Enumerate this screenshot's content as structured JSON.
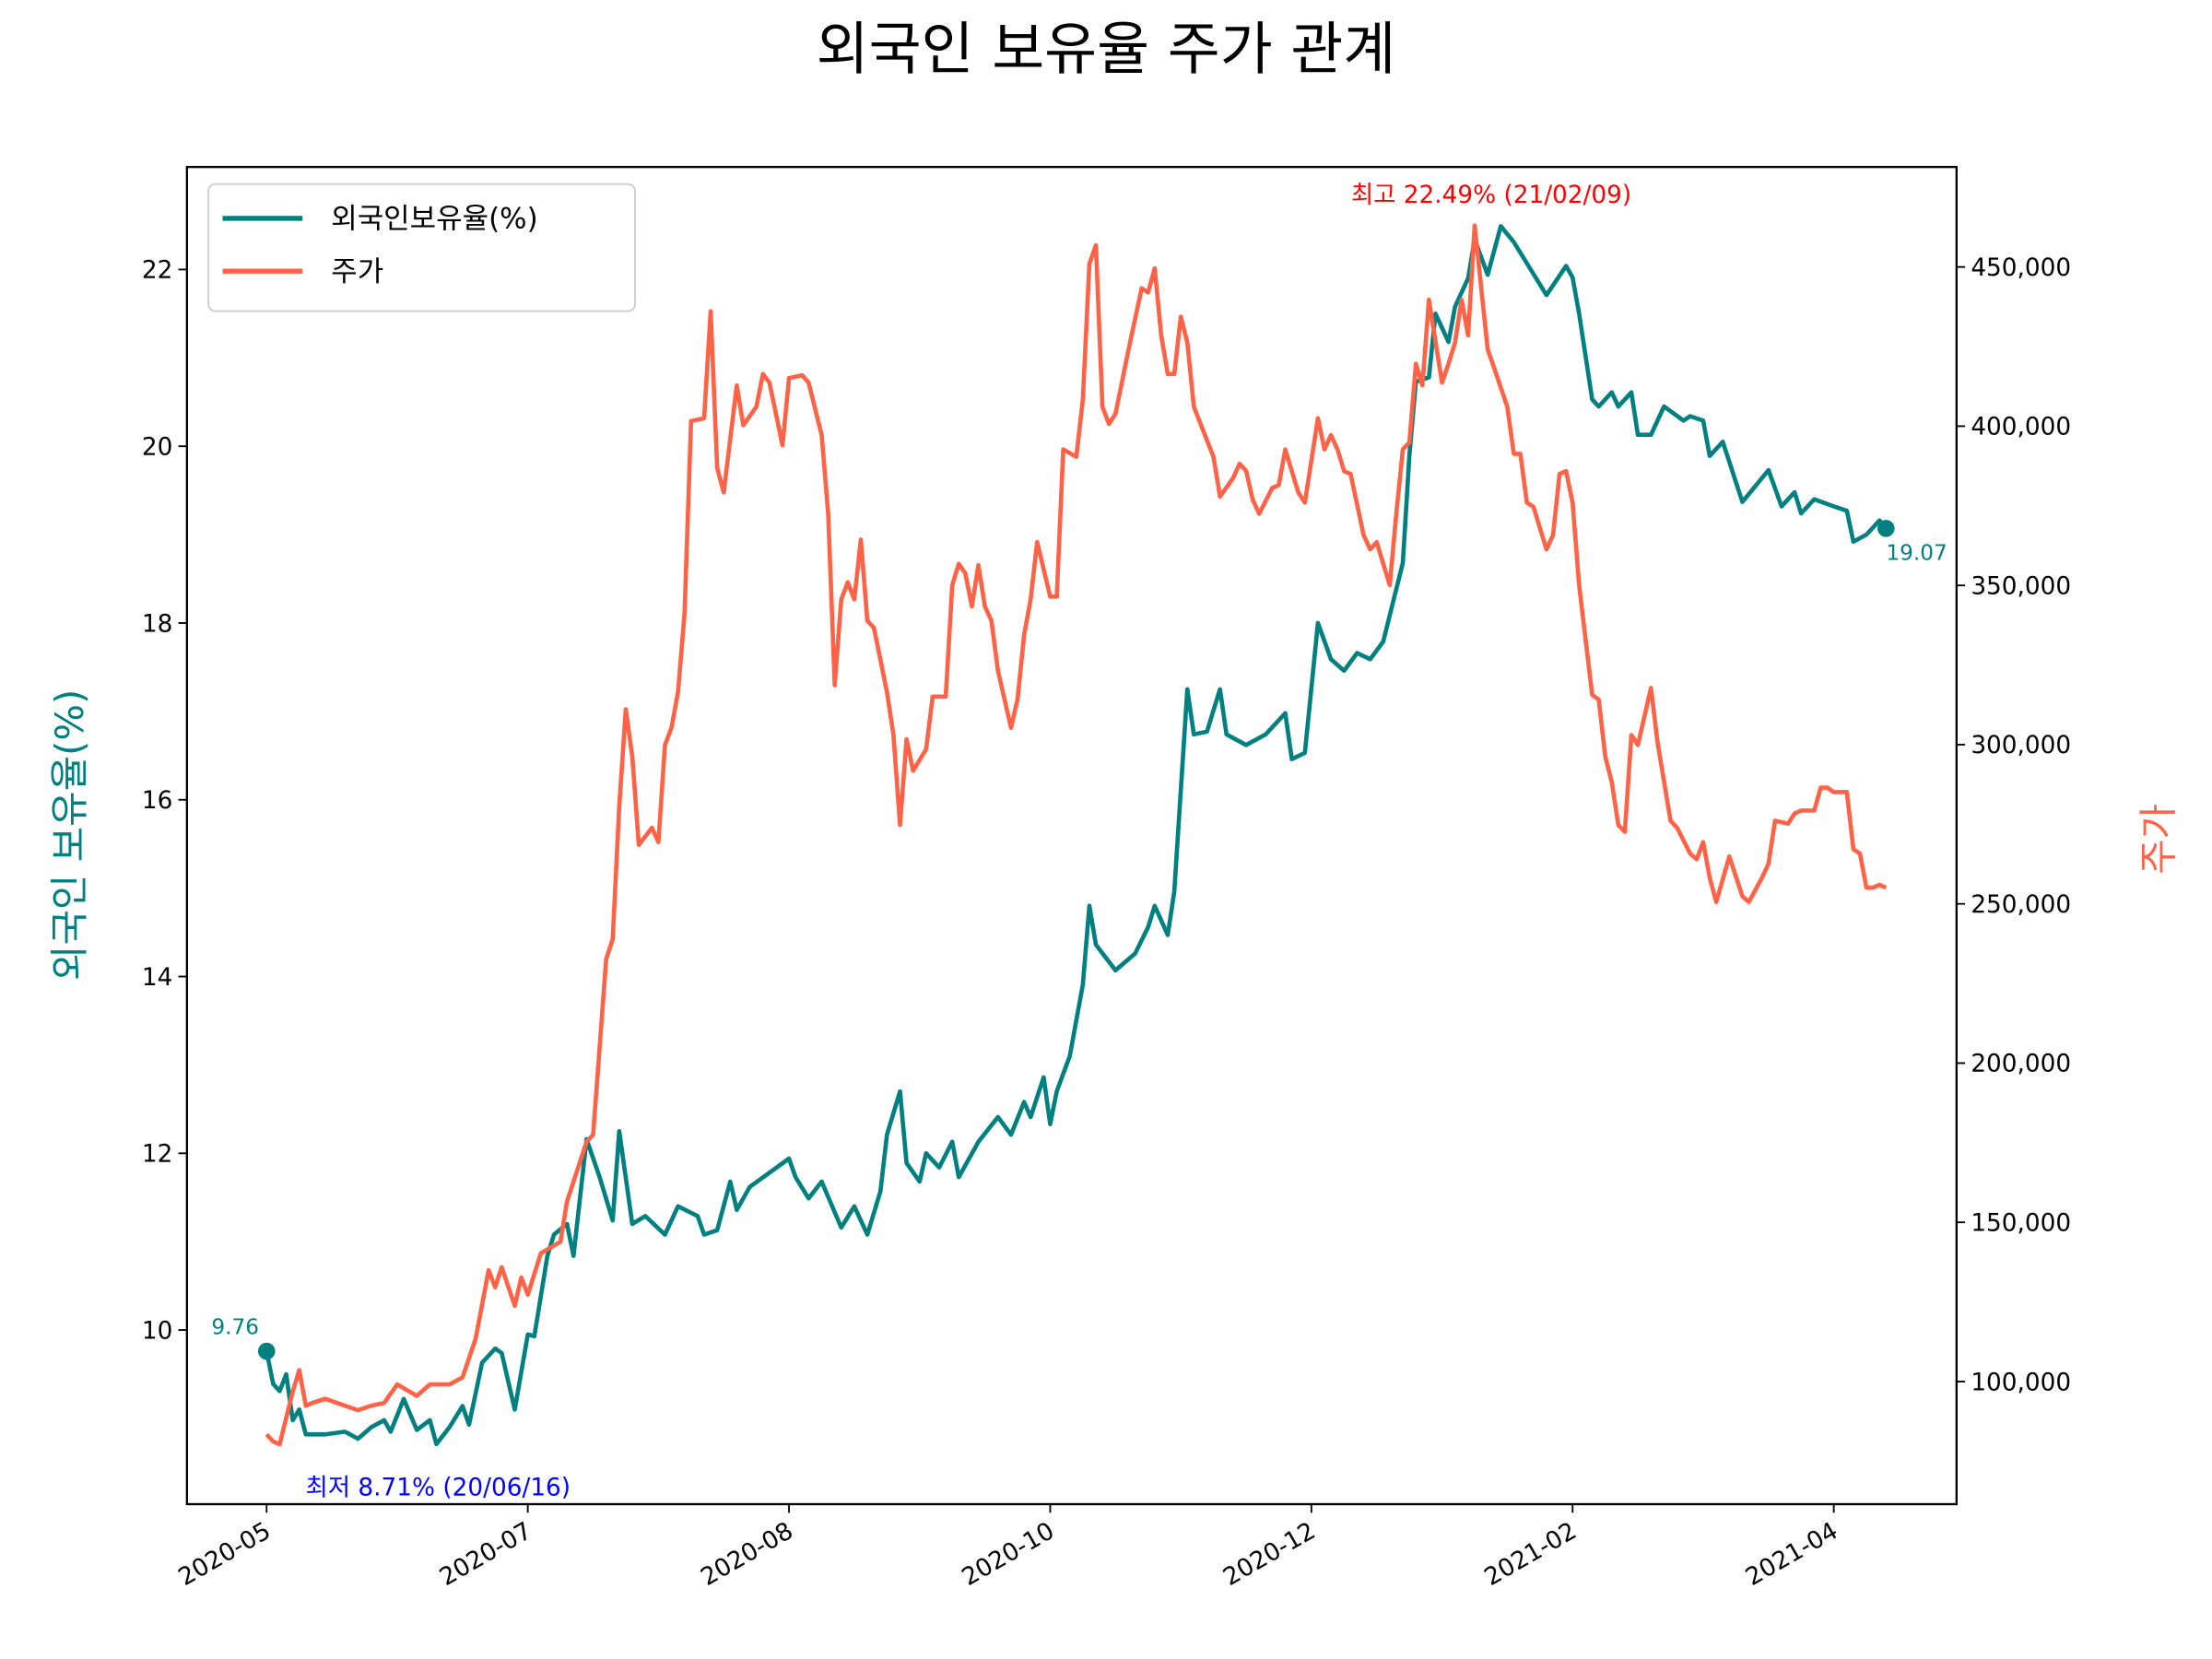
{
  "chart_data": {
    "type": "line",
    "title": "외국인 보유율 주가 관계",
    "ylabel": "외국인 보유율(%)",
    "y2label": "주가",
    "ylabel_color": "#008080",
    "y2label_color": "#ff6347",
    "legend": "upper left",
    "grid": false,
    "xlim": [
      -12.2,
      258.8
    ],
    "xticks": [
      {
        "value": 0,
        "label": "2020-05"
      },
      {
        "value": 40,
        "label": "2020-07"
      },
      {
        "value": 80,
        "label": "2020-08"
      },
      {
        "value": 120,
        "label": "2020-10"
      },
      {
        "value": 160,
        "label": "2020-12"
      },
      {
        "value": 200,
        "label": "2021-02"
      },
      {
        "value": 240,
        "label": "2021-04"
      }
    ],
    "ylim": [
      8.03,
      23.16
    ],
    "yticks": [
      10,
      12,
      14,
      16,
      18,
      20,
      22
    ],
    "y2lim": [
      61500,
      481400
    ],
    "y2ticks": [
      {
        "value": 100000,
        "label": "100,000"
      },
      {
        "value": 150000,
        "label": "150,000"
      },
      {
        "value": 200000,
        "label": "200,000"
      },
      {
        "value": 250000,
        "label": "250,000"
      },
      {
        "value": 300000,
        "label": "300,000"
      },
      {
        "value": 350000,
        "label": "350,000"
      },
      {
        "value": 400000,
        "label": "400,000"
      },
      {
        "value": 450000,
        "label": "450,000"
      }
    ],
    "series": [
      {
        "name": "외국인보유율(%)",
        "color": "#008080",
        "axis": "y",
        "endpoint_markers": true,
        "x": [
          0,
          1,
          2,
          3,
          4,
          5,
          6,
          9,
          12,
          14,
          16,
          18,
          19,
          21,
          23,
          25,
          26,
          28,
          30,
          31,
          33,
          35,
          36,
          38,
          40,
          41,
          43,
          44,
          46,
          47,
          49,
          51,
          53,
          54,
          56,
          58,
          61,
          63,
          66,
          67,
          69,
          71,
          72,
          74,
          77,
          80,
          81,
          83,
          85,
          88,
          90,
          92,
          94,
          95,
          97,
          98,
          100,
          101,
          103,
          105,
          106,
          109,
          112,
          114,
          116,
          117,
          119,
          120,
          121,
          123,
          125,
          126,
          127,
          130,
          133,
          135,
          136,
          138,
          139,
          141,
          142,
          144,
          146,
          147,
          150,
          153,
          156,
          157,
          159,
          161,
          163,
          165,
          167,
          169,
          171,
          174,
          175,
          176,
          178,
          179,
          181,
          182,
          184,
          185,
          187,
          189,
          191,
          195,
          196,
          199,
          200,
          201,
          203,
          204,
          206,
          207,
          209,
          210,
          212,
          214,
          217,
          218,
          220,
          221,
          223,
          226,
          229,
          230,
          232,
          234,
          235,
          237,
          240,
          242,
          243,
          245,
          247,
          248
        ],
        "values": [
          9.76,
          9.39,
          9.31,
          9.5,
          8.98,
          9.1,
          8.82,
          8.82,
          8.85,
          8.77,
          8.9,
          8.98,
          8.85,
          9.22,
          8.87,
          8.98,
          8.71,
          8.9,
          9.14,
          8.93,
          9.63,
          9.79,
          9.74,
          9.1,
          9.95,
          9.93,
          10.84,
          11.08,
          11.2,
          10.84,
          12.16,
          11.73,
          11.24,
          12.25,
          11.2,
          11.29,
          11.08,
          11.4,
          11.29,
          11.08,
          11.13,
          11.68,
          11.36,
          11.62,
          11.78,
          11.94,
          11.73,
          11.49,
          11.68,
          11.16,
          11.4,
          11.08,
          11.57,
          12.21,
          12.7,
          11.89,
          11.68,
          12.0,
          11.84,
          12.13,
          11.73,
          12.13,
          12.41,
          12.21,
          12.58,
          12.41,
          12.86,
          12.33,
          12.7,
          13.1,
          13.91,
          14.8,
          14.36,
          14.07,
          14.26,
          14.56,
          14.8,
          14.47,
          14.96,
          17.25,
          16.74,
          16.77,
          17.25,
          16.74,
          16.62,
          16.74,
          16.98,
          16.46,
          16.53,
          18.0,
          17.59,
          17.46,
          17.66,
          17.59,
          17.79,
          18.68,
          19.89,
          20.73,
          20.78,
          21.5,
          21.18,
          21.58,
          21.9,
          22.34,
          21.94,
          22.49,
          22.31,
          21.83,
          21.71,
          22.04,
          21.91,
          21.5,
          20.53,
          20.45,
          20.61,
          20.45,
          20.61,
          20.13,
          20.13,
          20.45,
          20.29,
          20.34,
          20.29,
          19.89,
          20.05,
          19.37,
          19.64,
          19.73,
          19.32,
          19.48,
          19.24,
          19.4,
          19.32,
          19.27,
          18.92,
          19.0,
          19.16,
          19.07
        ]
      },
      {
        "name": "주가",
        "color": "#ff6347",
        "axis": "y2",
        "x": [
          0,
          1,
          2,
          4,
          5,
          6,
          7,
          9,
          12,
          14,
          16,
          18,
          20,
          23,
          25,
          28,
          30,
          32,
          34,
          35,
          36,
          38,
          39,
          40,
          42,
          45,
          46,
          49,
          50,
          52,
          53,
          54,
          55,
          56,
          57,
          59,
          60,
          61,
          62,
          63,
          64,
          65,
          67,
          68,
          69,
          70,
          72,
          73,
          75,
          76,
          77,
          78,
          79,
          80,
          82,
          83,
          85,
          86,
          87,
          88,
          89,
          90,
          91,
          92,
          93,
          95,
          96,
          97,
          98,
          99,
          101,
          102,
          104,
          105,
          106,
          107,
          108,
          109,
          110,
          111,
          112,
          114,
          115,
          116,
          117,
          118,
          120,
          121,
          122,
          124,
          125,
          126,
          127,
          128,
          129,
          130,
          132,
          134,
          135,
          136,
          137,
          138,
          139,
          140,
          141,
          142,
          145,
          146,
          148,
          149,
          150,
          151,
          152,
          154,
          155,
          156,
          157,
          158,
          159,
          161,
          162,
          163,
          164,
          165,
          166,
          168,
          169,
          170,
          172,
          173,
          174,
          175,
          176,
          177,
          178,
          180,
          181,
          182,
          183,
          184,
          185,
          187,
          188,
          190,
          191,
          192,
          193,
          194,
          196,
          197,
          198,
          199,
          200,
          201,
          203,
          204,
          205,
          206,
          207,
          208,
          209,
          210,
          212,
          213,
          215,
          216,
          218,
          219,
          220,
          221,
          222,
          224,
          226,
          227,
          229,
          230,
          231,
          233,
          234,
          235,
          237,
          238,
          239,
          240,
          242,
          243,
          244,
          245,
          246,
          247,
          248
        ],
        "values": [
          83400,
          81200,
          80300,
          96900,
          103600,
          92400,
          93300,
          94600,
          92400,
          91000,
          92400,
          93300,
          99100,
          95500,
          99100,
          99100,
          101300,
          113400,
          135000,
          129600,
          135900,
          123800,
          132700,
          127300,
          140300,
          143900,
          156500,
          175300,
          177500,
          232700,
          238900,
          280600,
          311100,
          296300,
          268500,
          273900,
          269400,
          299900,
          305300,
          316500,
          341100,
          401600,
          402500,
          436100,
          386900,
          379200,
          412800,
          400300,
          406100,
          416400,
          413700,
          403900,
          394000,
          415100,
          416000,
          413700,
          397200,
          372500,
          318700,
          345600,
          351000,
          345600,
          364400,
          338900,
          336700,
          316500,
          303000,
          274800,
          301700,
          291800,
          298600,
          315100,
          315100,
          350100,
          356800,
          353800,
          343400,
          356400,
          343400,
          338900,
          323200,
          305300,
          314300,
          334400,
          345600,
          363600,
          346500,
          346500,
          392700,
          390400,
          408400,
          451000,
          456800,
          406100,
          400700,
          403900,
          424100,
          443300,
          442000,
          449600,
          428500,
          416400,
          416400,
          434400,
          426300,
          406100,
          390400,
          377900,
          383700,
          388200,
          386000,
          377000,
          372500,
          380600,
          381500,
          392700,
          385900,
          379200,
          376000,
          402500,
          392700,
          397200,
          392700,
          385900,
          385000,
          365800,
          361300,
          363600,
          350100,
          372500,
          392700,
          394900,
          419600,
          412800,
          439700,
          413700,
          419600,
          426300,
          439700,
          428500,
          463000,
          424100,
          418200,
          406100,
          391300,
          391300,
          376000,
          374700,
          361300,
          365800,
          385000,
          385900,
          376000,
          350100,
          315600,
          314200,
          296300,
          288200,
          274800,
          272600,
          303000,
          299900,
          317800,
          300800,
          276100,
          273900,
          265800,
          264000,
          269400,
          258200,
          250600,
          264900,
          252400,
          250600,
          258200,
          262600,
          276100,
          275200,
          278400,
          279300,
          279300,
          286500,
          286500,
          285100,
          285100,
          267200,
          265800,
          255100,
          255100,
          256000,
          255100
        ]
      }
    ],
    "annotations": [
      {
        "text": "최고 22.49% (21/02/09)",
        "color": "red"
      },
      {
        "text": "최저 8.71% (20/06/16)",
        "color": "blue"
      }
    ]
  }
}
